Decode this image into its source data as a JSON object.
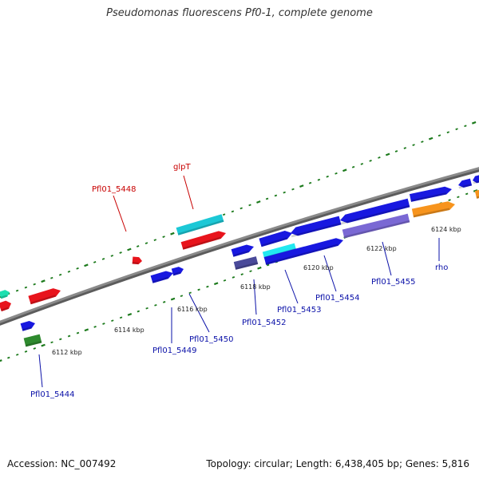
{
  "title": "Pseudomonas fluorescens Pf0-1, complete genome",
  "footer": {
    "accession": "Accession: NC_007492",
    "summary": "Topology: circular; Length: 6,438,405 bp; Genes: 5,816"
  },
  "colors": {
    "background": "#ffffff",
    "backbone": "#8a8a8a",
    "backbone_dark": "#5c5c5c",
    "tick": "#1c7a1c",
    "label_blue": "#0a10a8",
    "label_red": "#c80000",
    "red": "#e8141c",
    "blue": "#1818e0",
    "cyan": "#1cc8d6",
    "bright_cyan": "#22e8f0",
    "slate": "#4a4a9a",
    "lavender": "#7a68d4",
    "orange": "#f7941d",
    "green": "#2e8a2e",
    "teal": "#1de0b0"
  },
  "scale_labels": [
    "6112 kbp",
    "6114 kbp",
    "6116 kbp",
    "6118 kbp",
    "6120 kbp",
    "6122 kbp",
    "6124 kbp"
  ],
  "gene_labels": [
    {
      "text": "glpT",
      "color": "red"
    },
    {
      "text": "Pfl01_5448",
      "color": "red"
    },
    {
      "text": "Pfl01_5444",
      "color": "blue"
    },
    {
      "text": "Pfl01_5449",
      "color": "blue"
    },
    {
      "text": "Pfl01_5450",
      "color": "blue"
    },
    {
      "text": "Pfl01_5452",
      "color": "blue"
    },
    {
      "text": "Pfl01_5453",
      "color": "blue"
    },
    {
      "text": "Pfl01_5454",
      "color": "blue"
    },
    {
      "text": "Pfl01_5455",
      "color": "blue"
    },
    {
      "text": "rho",
      "color": "blue"
    }
  ]
}
